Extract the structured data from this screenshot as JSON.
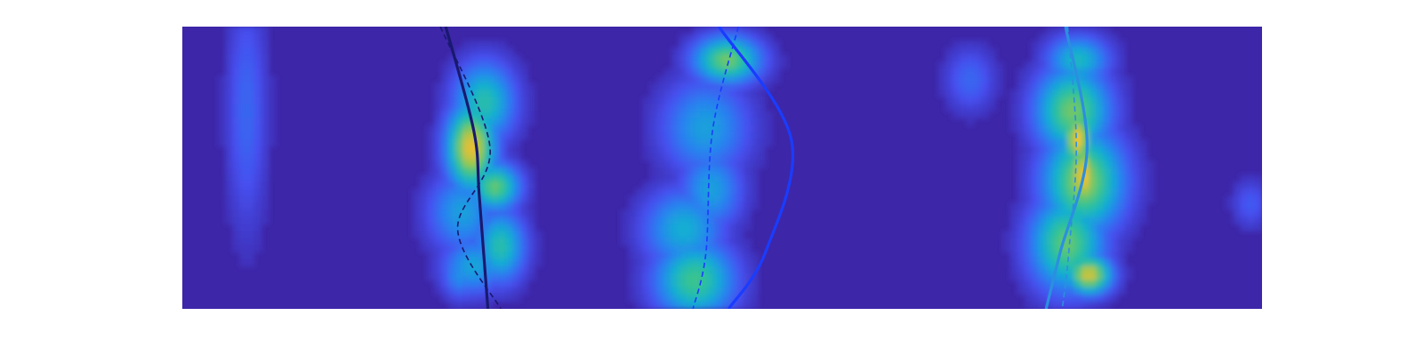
{
  "chart_data": {
    "type": "heatmap",
    "colormap": "parula",
    "background_color": "#3d26a8",
    "xlim": [
      0,
      1
    ],
    "ylim": [
      0,
      1
    ],
    "grid": false,
    "legend": "none",
    "hotspots": [
      {
        "x": 0.06,
        "y": 0.3,
        "sx": 0.013,
        "sy": 0.3,
        "v": 0.22
      },
      {
        "x": 0.26,
        "y": 0.66,
        "sx": 0.022,
        "sy": 0.1,
        "v": 0.4
      },
      {
        "x": 0.268,
        "y": 0.43,
        "sx": 0.016,
        "sy": 0.11,
        "v": 0.88
      },
      {
        "x": 0.29,
        "y": 0.57,
        "sx": 0.016,
        "sy": 0.06,
        "v": 0.68
      },
      {
        "x": 0.28,
        "y": 0.27,
        "sx": 0.02,
        "sy": 0.1,
        "v": 0.55
      },
      {
        "x": 0.27,
        "y": 0.85,
        "sx": 0.02,
        "sy": 0.07,
        "v": 0.42
      },
      {
        "x": 0.258,
        "y": 0.88,
        "sx": 0.012,
        "sy": 0.06,
        "v": 0.35
      },
      {
        "x": 0.295,
        "y": 0.78,
        "sx": 0.016,
        "sy": 0.09,
        "v": 0.55
      },
      {
        "x": 0.475,
        "y": 0.9,
        "sx": 0.026,
        "sy": 0.1,
        "v": 0.62
      },
      {
        "x": 0.465,
        "y": 0.72,
        "sx": 0.026,
        "sy": 0.1,
        "v": 0.45
      },
      {
        "x": 0.49,
        "y": 0.58,
        "sx": 0.02,
        "sy": 0.1,
        "v": 0.4
      },
      {
        "x": 0.485,
        "y": 0.36,
        "sx": 0.028,
        "sy": 0.12,
        "v": 0.4
      },
      {
        "x": 0.505,
        "y": 0.12,
        "sx": 0.022,
        "sy": 0.06,
        "v": 0.7
      },
      {
        "x": 0.82,
        "y": 0.77,
        "sx": 0.024,
        "sy": 0.12,
        "v": 0.68
      },
      {
        "x": 0.835,
        "y": 0.55,
        "sx": 0.026,
        "sy": 0.13,
        "v": 0.75
      },
      {
        "x": 0.825,
        "y": 0.3,
        "sx": 0.024,
        "sy": 0.11,
        "v": 0.7
      },
      {
        "x": 0.83,
        "y": 0.12,
        "sx": 0.02,
        "sy": 0.06,
        "v": 0.5
      },
      {
        "x": 0.84,
        "y": 0.88,
        "sx": 0.015,
        "sy": 0.05,
        "v": 0.85
      },
      {
        "x": 0.835,
        "y": 0.53,
        "sx": 0.012,
        "sy": 0.1,
        "v": 0.9
      },
      {
        "x": 0.83,
        "y": 0.4,
        "sx": 0.01,
        "sy": 0.08,
        "v": 0.9
      },
      {
        "x": 0.73,
        "y": 0.19,
        "sx": 0.016,
        "sy": 0.08,
        "v": 0.22
      },
      {
        "x": 0.99,
        "y": 0.63,
        "sx": 0.012,
        "sy": 0.06,
        "v": 0.18
      }
    ],
    "series": [
      {
        "style": "solid",
        "color": "#191970",
        "points": [
          [
            0.244,
            0.0
          ],
          [
            0.27,
            0.37
          ],
          [
            0.275,
            0.6
          ],
          [
            0.283,
            1.0
          ]
        ]
      },
      {
        "style": "dashed",
        "color": "#191970",
        "points": [
          [
            0.239,
            0.0
          ],
          [
            0.285,
            0.43
          ],
          [
            0.255,
            0.72
          ],
          [
            0.295,
            1.0
          ]
        ]
      },
      {
        "style": "solid",
        "color": "#1a3cff",
        "points": [
          [
            0.497,
            0.0
          ],
          [
            0.564,
            0.4
          ],
          [
            0.54,
            0.8
          ],
          [
            0.506,
            1.0
          ]
        ]
      },
      {
        "style": "dashed",
        "color": "#1a3cff",
        "points": [
          [
            0.515,
            0.0
          ],
          [
            0.491,
            0.37
          ],
          [
            0.485,
            0.8
          ],
          [
            0.473,
            1.0
          ]
        ]
      },
      {
        "style": "solid",
        "color": "#2b8fe0",
        "points": [
          [
            0.818,
            0.0
          ],
          [
            0.838,
            0.43
          ],
          [
            0.813,
            0.8
          ],
          [
            0.8,
            1.0
          ]
        ]
      },
      {
        "style": "dashed",
        "color": "#2b8fe0",
        "points": [
          [
            0.82,
            0.0
          ],
          [
            0.828,
            0.42
          ],
          [
            0.821,
            0.8
          ],
          [
            0.815,
            1.0
          ]
        ]
      }
    ]
  }
}
